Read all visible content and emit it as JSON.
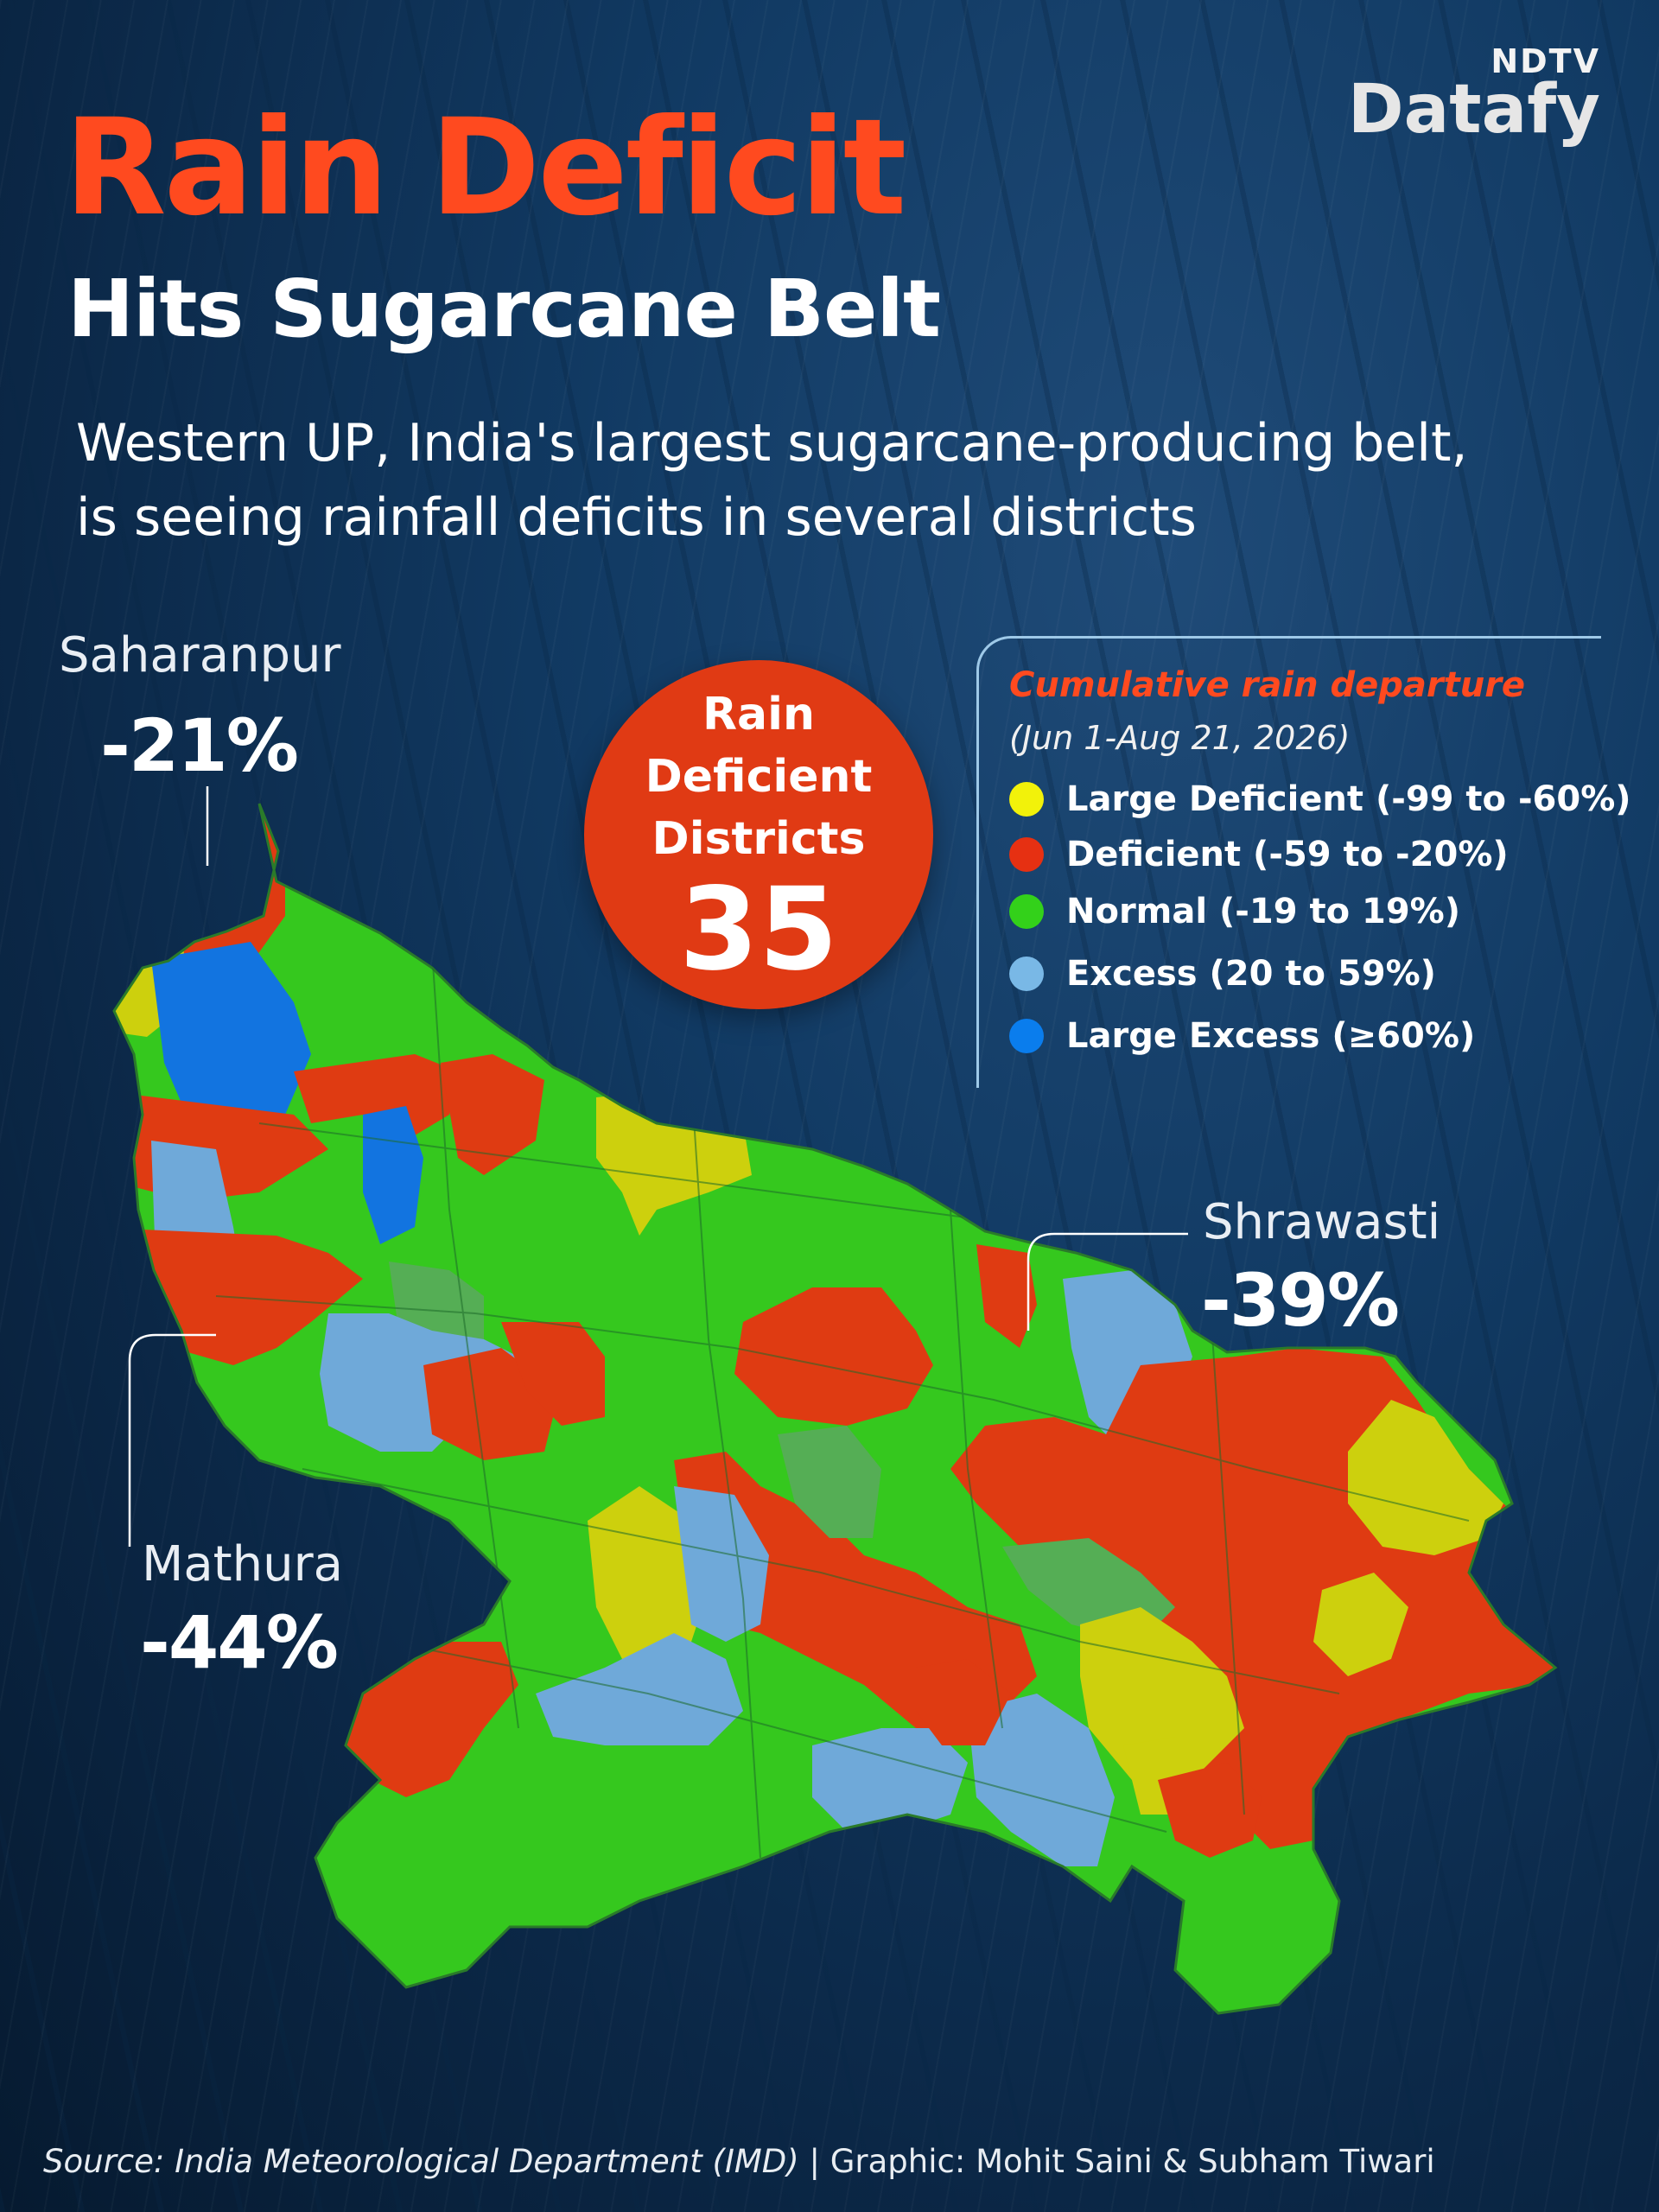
{
  "brand": {
    "top": "NDTV",
    "bottom": "Datafy"
  },
  "title": "Rain Deficit",
  "subtitle": "Hits Sugarcane Belt",
  "description": "Western UP, India's largest sugarcane-producing belt, is seeing rainfall deficits in several districts",
  "badge": {
    "line1": "Rain",
    "line2": "Deficient",
    "line3": "Districts",
    "number": "35"
  },
  "legend": {
    "title": "Cumulative rain departure",
    "period": "(Jun 1-Aug 21, 2026)",
    "items": [
      {
        "label": "Large Deficient (-99 to -60%)",
        "color": "#f2f20a"
      },
      {
        "label": "Deficient (-59 to -20%)",
        "color": "#e63012"
      },
      {
        "label": "Normal (-19 to 19%)",
        "color": "#33d11a"
      },
      {
        "label": "Excess (20 to 59%)",
        "color": "#79b8e6"
      },
      {
        "label": "Large Excess (≥60%)",
        "color": "#0a7ded"
      }
    ]
  },
  "callouts": {
    "saharanpur": {
      "name": "Saharanpur",
      "value": "-21%"
    },
    "mathura": {
      "name": "Mathura",
      "value": "-44%"
    },
    "shrawasti": {
      "name": "Shrawasti",
      "value": "-39%"
    }
  },
  "map_colors": {
    "large_deficient": "#cdd00d",
    "deficient": "#df3b12",
    "normal": "#35c81e",
    "normal_muted": "#55ae55",
    "excess": "#6fa9d9",
    "large_excess": "#1274e0",
    "border": "#1d6b2a"
  },
  "source": {
    "prefix": "Source: India Meteorological Department (IMD)",
    "credits": " | Graphic: Mohit Saini & Subham Tiwari"
  }
}
